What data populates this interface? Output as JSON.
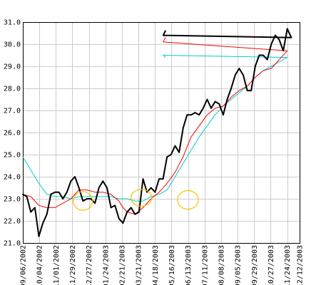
{
  "chart_data": {
    "type": "line",
    "title": "",
    "xlabel": "",
    "ylabel": "",
    "ylim": [
      21.0,
      31.0
    ],
    "yticks": [
      21.0,
      22.0,
      23.0,
      24.0,
      25.0,
      26.0,
      27.0,
      28.0,
      29.0,
      30.0,
      31.0
    ],
    "xlim": [
      0,
      67
    ],
    "xticks": [
      {
        "x": 0,
        "label": "09/06/2002"
      },
      {
        "x": 4,
        "label": "10/04/2002"
      },
      {
        "x": 8,
        "label": "11/01/2002"
      },
      {
        "x": 12,
        "label": "11/29/2002"
      },
      {
        "x": 16,
        "label": "12/27/2002"
      },
      {
        "x": 20,
        "label": "01/24/2003"
      },
      {
        "x": 24,
        "label": "02/21/2003"
      },
      {
        "x": 28,
        "label": "03/21/2003"
      },
      {
        "x": 32,
        "label": "04/18/2003"
      },
      {
        "x": 36,
        "label": "05/16/2003"
      },
      {
        "x": 40,
        "label": "06/13/2003"
      },
      {
        "x": 44,
        "label": "07/11/2003"
      },
      {
        "x": 48,
        "label": "08/08/2003"
      },
      {
        "x": 52,
        "label": "09/05/2003"
      },
      {
        "x": 56,
        "label": "09/29/2003"
      },
      {
        "x": 60,
        "label": "10/27/2003"
      },
      {
        "x": 64,
        "label": "11/24/2003"
      },
      {
        "x": 67,
        "label": "12/12/2003"
      }
    ],
    "grid": true,
    "series": [
      {
        "color": "#000000",
        "width": 2,
        "points": [
          [
            0,
            23.2
          ],
          [
            0.5,
            23.1
          ],
          [
            1,
            22.4
          ],
          [
            1.5,
            22.6
          ],
          [
            2,
            21.3
          ],
          [
            2.5,
            21.9
          ],
          [
            3,
            22.3
          ],
          [
            3.5,
            23.2
          ],
          [
            4,
            23.3
          ],
          [
            4.5,
            23.3
          ],
          [
            5,
            23.0
          ],
          [
            5.5,
            23.3
          ],
          [
            6,
            23.8
          ],
          [
            6.5,
            24.0
          ],
          [
            7,
            23.5
          ],
          [
            7.5,
            22.9
          ],
          [
            8,
            23.0
          ],
          [
            8.5,
            23.0
          ],
          [
            9,
            22.8
          ],
          [
            9.5,
            23.5
          ],
          [
            10,
            23.8
          ],
          [
            10.5,
            23.5
          ],
          [
            11,
            22.6
          ],
          [
            11.5,
            22.7
          ],
          [
            12,
            22.1
          ],
          [
            12.5,
            21.9
          ],
          [
            13,
            22.4
          ],
          [
            13.5,
            22.6
          ],
          [
            14,
            22.3
          ],
          [
            14.5,
            22.4
          ],
          [
            15,
            23.9
          ],
          [
            15.5,
            23.3
          ],
          [
            16,
            23.5
          ],
          [
            16.5,
            23.3
          ],
          [
            17,
            23.9
          ],
          [
            17.5,
            23.9
          ],
          [
            18,
            24.9
          ],
          [
            18.5,
            25.0
          ],
          [
            19,
            25.4
          ],
          [
            19.5,
            25.1
          ],
          [
            20,
            26.2
          ],
          [
            20.5,
            26.8
          ],
          [
            21,
            26.8
          ],
          [
            21.5,
            26.9
          ],
          [
            22,
            26.8
          ],
          [
            22.5,
            27.1
          ],
          [
            23,
            27.5
          ],
          [
            23.5,
            27.1
          ],
          [
            24,
            27.4
          ],
          [
            24.5,
            27.3
          ],
          [
            25,
            26.8
          ],
          [
            25.5,
            27.5
          ],
          [
            26,
            28.0
          ],
          [
            26.5,
            28.6
          ],
          [
            27,
            28.9
          ],
          [
            27.5,
            28.6
          ],
          [
            28,
            27.9
          ],
          [
            28.5,
            27.9
          ],
          [
            29,
            29.0
          ],
          [
            29.5,
            29.5
          ],
          [
            30,
            29.5
          ],
          [
            30.5,
            29.3
          ],
          [
            31,
            30.0
          ],
          [
            31.5,
            30.4
          ],
          [
            32,
            30.2
          ],
          [
            32.5,
            29.7
          ],
          [
            33,
            30.7
          ],
          [
            33.5,
            30.3
          ],
          [
            34,
            30.4
          ],
          [
            34.5,
            30.6
          ]
        ]
      },
      {
        "color": "#ff0000",
        "width": 1,
        "points": [
          [
            0,
            23.2
          ],
          [
            1,
            23.1
          ],
          [
            1.5,
            22.9
          ],
          [
            2,
            22.7
          ],
          [
            3,
            22.6
          ],
          [
            4,
            22.6
          ],
          [
            5,
            22.8
          ],
          [
            6,
            23.0
          ],
          [
            7,
            23.4
          ],
          [
            8,
            23.4
          ],
          [
            9,
            23.3
          ],
          [
            10,
            23.3
          ],
          [
            11,
            23.2
          ],
          [
            12,
            22.9
          ],
          [
            12.5,
            22.6
          ],
          [
            13,
            22.4
          ],
          [
            14,
            22.3
          ],
          [
            15,
            22.6
          ],
          [
            16,
            23.0
          ],
          [
            17,
            23.3
          ],
          [
            18,
            23.7
          ],
          [
            19,
            24.2
          ],
          [
            20,
            24.9
          ],
          [
            21,
            25.8
          ],
          [
            22,
            26.3
          ],
          [
            23,
            26.8
          ],
          [
            24,
            27.1
          ],
          [
            25,
            27.2
          ],
          [
            26,
            27.6
          ],
          [
            27,
            27.9
          ],
          [
            28,
            28.1
          ],
          [
            29,
            28.5
          ],
          [
            30,
            28.8
          ],
          [
            31,
            28.9
          ],
          [
            32,
            29.3
          ],
          [
            33,
            29.7
          ],
          [
            34,
            30.1
          ],
          [
            34.5,
            30.3
          ]
        ]
      },
      {
        "color": "#00cccc",
        "width": 1,
        "points": [
          [
            0,
            24.9
          ],
          [
            1,
            24.3
          ],
          [
            2,
            23.7
          ],
          [
            3,
            23.2
          ],
          [
            4,
            23.1
          ],
          [
            5,
            23.1
          ],
          [
            6,
            23.0
          ],
          [
            7,
            23.1
          ],
          [
            8,
            23.1
          ],
          [
            9,
            23.1
          ],
          [
            10,
            23.1
          ],
          [
            11,
            23.1
          ],
          [
            12,
            23.0
          ],
          [
            13,
            23.0
          ],
          [
            14,
            22.9
          ],
          [
            15,
            22.9
          ],
          [
            16,
            23.1
          ],
          [
            17,
            23.2
          ],
          [
            18,
            23.4
          ],
          [
            19,
            24.0
          ],
          [
            20,
            24.6
          ],
          [
            21,
            25.2
          ],
          [
            22,
            25.8
          ],
          [
            23,
            26.3
          ],
          [
            24,
            26.8
          ],
          [
            25,
            27.2
          ],
          [
            26,
            27.5
          ],
          [
            27,
            27.8
          ],
          [
            28,
            28.1
          ],
          [
            29,
            28.5
          ],
          [
            30,
            28.8
          ],
          [
            31,
            29.0
          ],
          [
            32,
            29.2
          ],
          [
            33,
            29.4
          ],
          [
            34,
            29.5
          ],
          [
            34.5,
            29.4
          ]
        ]
      }
    ],
    "annotations": [
      {
        "type": "ellipse",
        "color": "#f5c400",
        "cx": 7.5,
        "cy": 22.9,
        "rx": 1.2,
        "ry": 0.42
      },
      {
        "type": "ellipse",
        "color": "#f5c400",
        "cx": 14.8,
        "cy": 23.05,
        "rx": 1.3,
        "ry": 0.38
      },
      {
        "type": "ellipse",
        "color": "#f5c400",
        "cx": 20.6,
        "cy": 22.95,
        "rx": 1.3,
        "ry": 0.42
      }
    ]
  }
}
